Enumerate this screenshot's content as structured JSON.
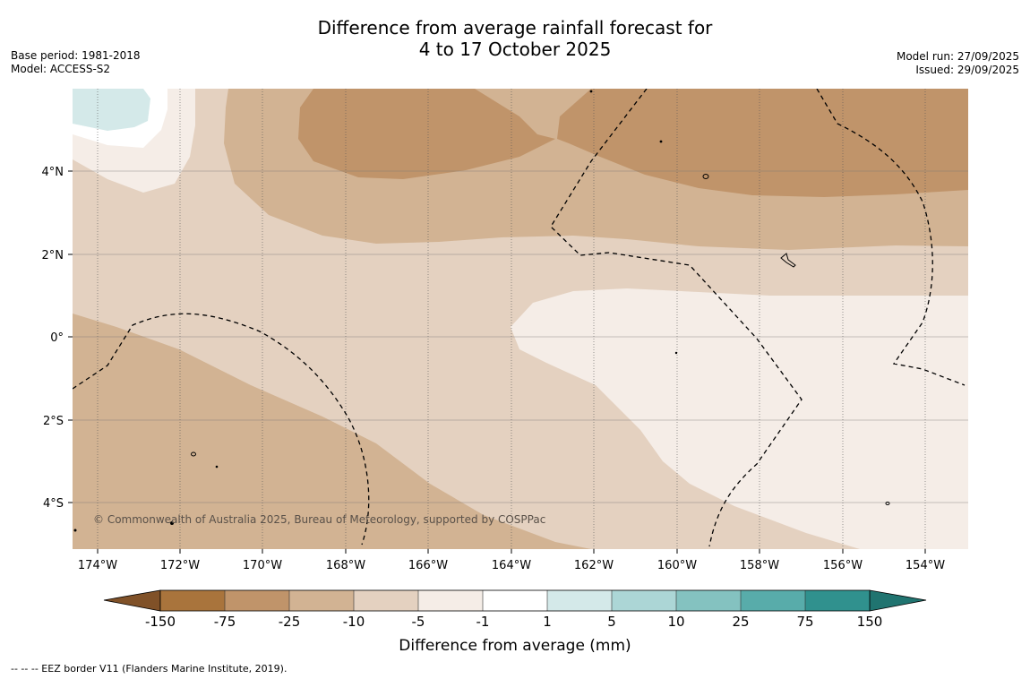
{
  "title": {
    "line1": "Difference from average rainfall forecast for",
    "line2": "4 to 17 October 2025"
  },
  "meta_left": {
    "base_period": "Base period: 1981-2018",
    "model": "Model: ACCESS-S2"
  },
  "meta_right": {
    "model_run": "Model run: 27/09/2025",
    "issued": "Issued: 29/09/2025"
  },
  "map": {
    "lon_labels": [
      "174°W",
      "172°W",
      "170°W",
      "168°W",
      "166°W",
      "164°W",
      "162°W",
      "160°W",
      "158°W",
      "156°W",
      "154°W"
    ],
    "lat_labels": [
      "4°N",
      "2°N",
      "0°",
      "2°S",
      "4°S"
    ],
    "copyright": "© Commonwealth of Australia 2025, Bureau of Meteorology, supported by COSPPac"
  },
  "colorbar": {
    "ticks": [
      "-150",
      "-75",
      "-25",
      "-10",
      "-5",
      "-1",
      "1",
      "5",
      "10",
      "25",
      "75",
      "150"
    ],
    "colors": [
      "#a9743c",
      "#c0946a",
      "#d2b393",
      "#e4d1c0",
      "#f5ede7",
      "#ffffff",
      "#d4e9e9",
      "#acd6d6",
      "#84c2c0",
      "#58acaa",
      "#30918e"
    ],
    "extend_low": "#805128",
    "extend_high": "#207470",
    "label": "Difference from average (mm)"
  },
  "footnote": "--  --  -- EEZ border V11 (Flanders Marine Institute, 2019).",
  "colors": {
    "c_m75": "#c0946a",
    "c_m25": "#d2b393",
    "c_m10": "#e4d1c0",
    "c_m5": "#f5ede7",
    "c_0": "#ffffff",
    "c_p1": "#d4e9e9"
  }
}
